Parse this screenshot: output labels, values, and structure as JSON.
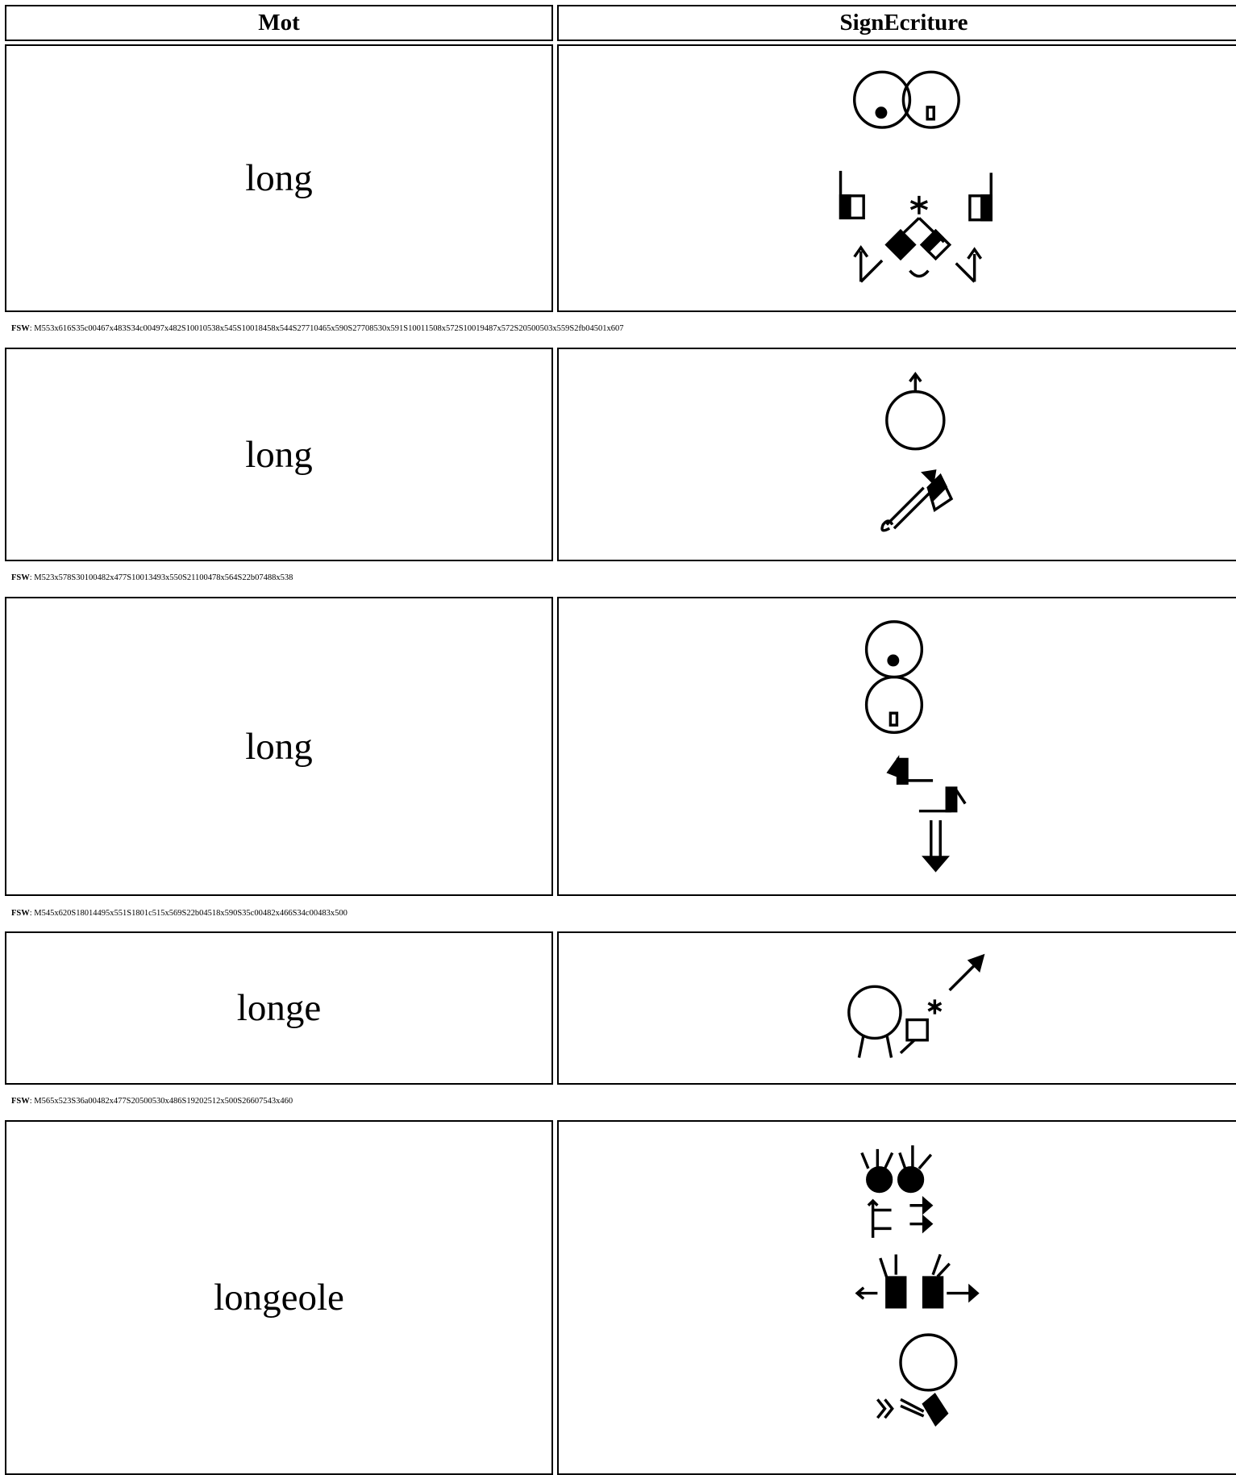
{
  "header": {
    "columns": [
      "Mot",
      "SignEcriture"
    ]
  },
  "fsw_label": "FSW",
  "rows": [
    {
      "word": "long",
      "fsw": ": M553x616S35c00467x483S34c00497x482S10010538x545S10018458x544S27710465x590S27708530x591S10011508x572S10019487x572S20500503x559S2fb04501x607"
    },
    {
      "word": "long",
      "fsw": ": M523x578S30100482x477S10013493x550S21100478x564S22b07488x538"
    },
    {
      "word": "long",
      "fsw": ": M545x620S18014495x551S1801c515x569S22b04518x590S35c00482x466S34c00483x500"
    },
    {
      "word": "longe",
      "fsw": ": M565x523S36a00482x477S20500530x486S19202512x500S26607543x460"
    },
    {
      "word": "longeole"
    }
  ]
}
